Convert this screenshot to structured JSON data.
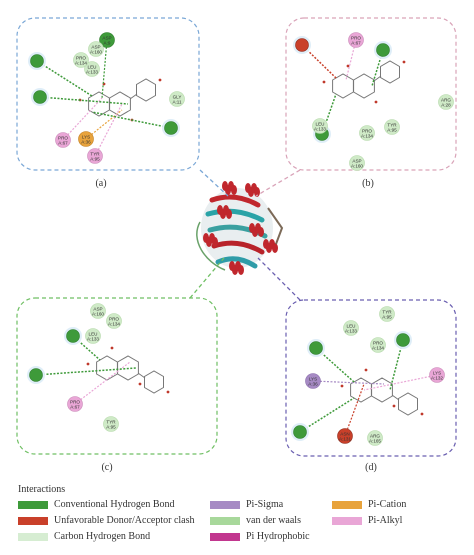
{
  "panels": [
    {
      "id": "a",
      "label": "(a)",
      "border": "#7aa7d6",
      "residues": [
        {
          "text": "ASP A:9",
          "type": "conv"
        },
        {
          "text": "ASP A:160",
          "type": "vdw"
        },
        {
          "text": "LEU A:133",
          "type": "vdw"
        },
        {
          "text": "PRO A:134",
          "type": "vdw"
        },
        {
          "text": "GLY A:11",
          "type": "vdw"
        },
        {
          "text": "LYS A:36",
          "type": "cation"
        },
        {
          "text": "PRO A:67",
          "type": "alkyl"
        },
        {
          "text": "TYR A:95",
          "type": "alkyl"
        }
      ]
    },
    {
      "id": "b",
      "label": "(b)",
      "border": "#d9a3b8",
      "residues": [
        {
          "text": "PRO A:67",
          "type": "alkyl"
        },
        {
          "text": "ARG A:28",
          "type": "vdw"
        },
        {
          "text": "LEU A:133",
          "type": "vdw"
        },
        {
          "text": "PRO A:134",
          "type": "vdw"
        },
        {
          "text": "TYR A:95",
          "type": "vdw"
        },
        {
          "text": "ASP A:160",
          "type": "vdw"
        }
      ]
    },
    {
      "id": "c",
      "label": "(c)",
      "border": "#6fbf63",
      "residues": [
        {
          "text": "ASP A:160",
          "type": "vdw"
        },
        {
          "text": "PRO A:134",
          "type": "vdw"
        },
        {
          "text": "LEU A:133",
          "type": "vdw"
        },
        {
          "text": "PRO A:67",
          "type": "alkyl"
        },
        {
          "text": "TYR A:95",
          "type": "vdw"
        }
      ]
    },
    {
      "id": "d",
      "label": "(d)",
      "border": "#6a5fb0",
      "residues": [
        {
          "text": "TYR A:95",
          "type": "vdw"
        },
        {
          "text": "LEU A:133",
          "type": "vdw"
        },
        {
          "text": "PRO A:134",
          "type": "vdw"
        },
        {
          "text": "LYS A:36",
          "type": "sigma"
        },
        {
          "text": "LYS A:132",
          "type": "alkyl"
        },
        {
          "text": "ARG A:165",
          "type": "vdw"
        },
        {
          "text": "ASN A:131",
          "type": "clash"
        }
      ]
    }
  ],
  "legend": {
    "title": "Interactions",
    "items": [
      {
        "label": "Conventional Hydrogen Bond",
        "color": "#3e9a3a"
      },
      {
        "label": "Unfavorable Donor/Acceptor clash",
        "color": "#c9402a"
      },
      {
        "label": "Carbon Hydrogen Bond",
        "color": "#d6edd2"
      },
      {
        "label": "Pi-Sigma",
        "color": "#a68ac4"
      },
      {
        "label": "van der waals",
        "color": "#a8d89b"
      },
      {
        "label": "Pi Hydrophobic",
        "color": "#c2378f"
      },
      {
        "label": "Pi-Cation",
        "color": "#e8a33c"
      },
      {
        "label": "Pi-Alkyl",
        "color": "#e9a6d6"
      }
    ]
  }
}
